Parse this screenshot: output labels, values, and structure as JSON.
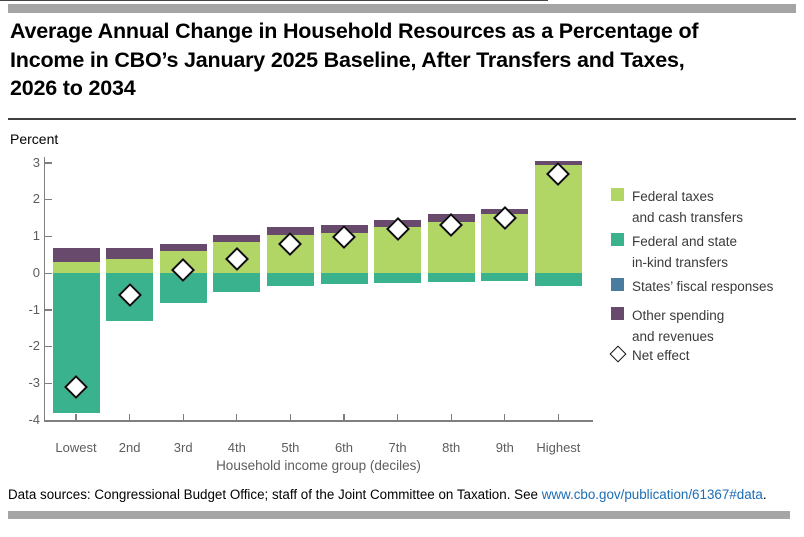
{
  "page": {
    "title_lines": [
      "Average Annual Change in Household Resources as a Percentage of",
      "Income in CBO’s January 2025 Baseline, After Transfers and Taxes,",
      "2026 to 2034"
    ],
    "percent_label": "Percent",
    "footer": {
      "prefix": "Data sources: Congressional Budget Office; staff of the Joint Committee on Taxation. See ",
      "link": "www.cbo.gov/publication/61367#data",
      "suffix": "."
    }
  },
  "colors": {
    "federal_taxes": "#b2d666",
    "in_kind": "#3bb28e",
    "states_fiscal": "#4a7c9f",
    "other": "#684a6c",
    "diamond_fill": "#ffffff",
    "diamond_border": "#0d0d0d",
    "link_blue": "#1b6db5",
    "rule_gray": "#a5a5a5"
  },
  "legend": {
    "items": [
      {
        "key": "federal_taxes",
        "marker": "square",
        "label_lines": [
          "Federal taxes",
          "and cash transfers"
        ]
      },
      {
        "key": "in_kind",
        "marker": "square",
        "label_lines": [
          "Federal and state",
          "in-kind transfers"
        ]
      },
      {
        "key": "states_fiscal",
        "marker": "square",
        "label_lines": [
          "States’ fiscal responses"
        ]
      },
      {
        "key": "other",
        "marker": "square",
        "label_lines": [
          "Other spending",
          "and revenues"
        ]
      },
      {
        "key": "net_effect",
        "marker": "diamond",
        "label_lines": [
          "Net effect"
        ]
      }
    ]
  },
  "chart_data": {
    "type": "bar",
    "stacked": true,
    "title": "Average Annual Change in Household Resources as a Percentage of Income in CBO’s January 2025 Baseline, After Transfers and Taxes, 2026 to 2034",
    "ylabel": "Percent",
    "xlabel": "Household income group (deciles)",
    "ylim": [
      -4,
      3
    ],
    "ytick_step": 1,
    "grid": false,
    "legend_position": "right",
    "categories": [
      "Lowest",
      "2nd",
      "3rd",
      "4th",
      "5th",
      "6th",
      "7th",
      "8th",
      "9th",
      "Highest"
    ],
    "series": [
      {
        "name": "Federal taxes and cash transfers",
        "color_key": "federal_taxes",
        "values": [
          0.3,
          0.4,
          0.6,
          0.85,
          1.05,
          1.1,
          1.25,
          1.4,
          1.6,
          2.95
        ]
      },
      {
        "name": "Federal and state in-kind transfers",
        "color_key": "in_kind",
        "values": [
          -3.8,
          -1.3,
          -0.8,
          -0.5,
          -0.35,
          -0.3,
          -0.27,
          -0.25,
          -0.2,
          -0.35
        ]
      },
      {
        "name": "States’ fiscal responses",
        "color_key": "states_fiscal",
        "values": [
          0,
          0,
          0,
          0,
          0,
          0,
          0,
          0,
          0,
          0
        ]
      },
      {
        "name": "Other spending and revenues",
        "color_key": "other",
        "values": [
          0.4,
          0.3,
          0.2,
          0.2,
          0.2,
          0.2,
          0.2,
          0.2,
          0.15,
          0.1
        ]
      }
    ],
    "net_effect": {
      "name": "Net effect",
      "marker": "diamond",
      "values": [
        -3.1,
        -0.6,
        0.1,
        0.4,
        0.8,
        1.0,
        1.2,
        1.3,
        1.5,
        2.7
      ]
    }
  }
}
